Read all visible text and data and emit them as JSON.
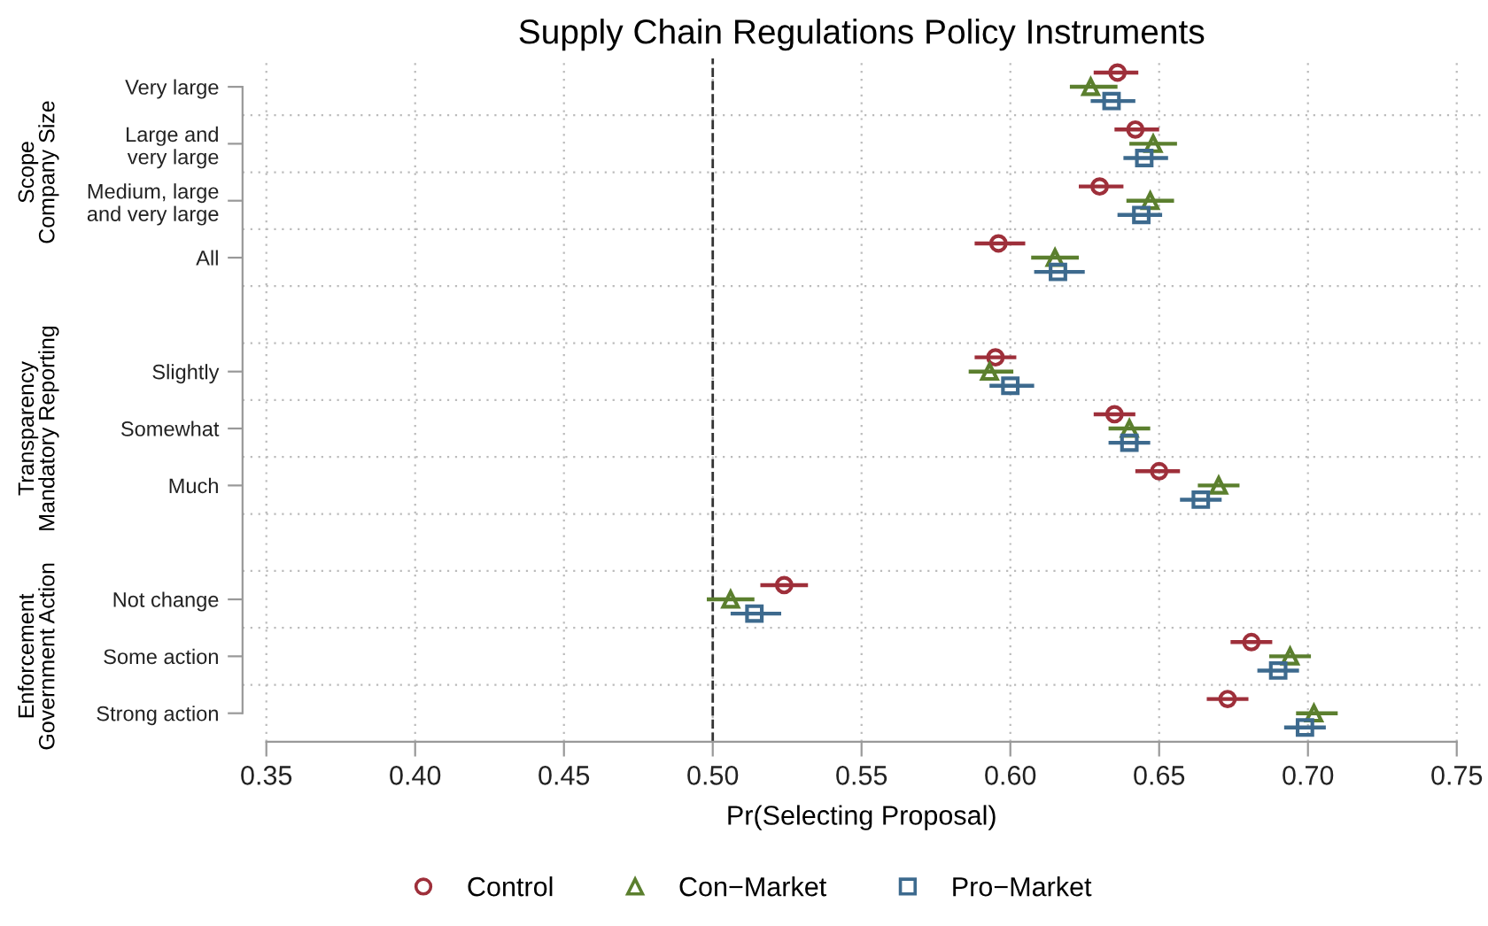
{
  "chart_data": {
    "type": "scatter",
    "orientation": "horizontal",
    "title": "Supply Chain Regulations Policy Instruments",
    "xlabel": "Pr(Selecting Proposal)",
    "categories": [
      "Very large",
      "Large and\nvery large",
      "Medium, large\nand very large",
      "All",
      null,
      "Slightly",
      "Somewhat",
      "Much",
      null,
      "Not change",
      "Some action",
      "Strong action"
    ],
    "annotations": [
      "Scope\nCompany Size",
      "Transparency\nMandatory Reporting",
      "Enforcement\nGovernment Action"
    ],
    "series": [
      {
        "name": "Control",
        "color": "#9e2f3a",
        "marker": "circle",
        "values": [
          0.636,
          0.642,
          0.63,
          0.596,
          null,
          0.595,
          0.635,
          0.65,
          null,
          0.524,
          0.681,
          0.673
        ],
        "errors": [
          [
            0.628,
            0.643
          ],
          [
            0.635,
            0.65
          ],
          [
            0.623,
            0.638
          ],
          [
            0.588,
            0.605
          ],
          null,
          [
            0.588,
            0.602
          ],
          [
            0.628,
            0.642
          ],
          [
            0.642,
            0.657
          ],
          null,
          [
            0.516,
            0.532
          ],
          [
            0.674,
            0.688
          ],
          [
            0.666,
            0.68
          ]
        ]
      },
      {
        "name": "Con−Market",
        "color": "#5b7f2e",
        "marker": "triangle",
        "values": [
          0.627,
          0.648,
          0.647,
          0.615,
          null,
          0.593,
          0.64,
          0.67,
          null,
          0.506,
          0.694,
          0.702
        ],
        "errors": [
          [
            0.62,
            0.636
          ],
          [
            0.64,
            0.656
          ],
          [
            0.639,
            0.655
          ],
          [
            0.607,
            0.623
          ],
          null,
          [
            0.586,
            0.601
          ],
          [
            0.633,
            0.647
          ],
          [
            0.663,
            0.677
          ],
          null,
          [
            0.498,
            0.514
          ],
          [
            0.687,
            0.701
          ],
          [
            0.696,
            0.71
          ]
        ]
      },
      {
        "name": "Pro−Market",
        "color": "#3d6a8e",
        "marker": "square",
        "values": [
          0.634,
          0.645,
          0.644,
          0.616,
          null,
          0.6,
          0.64,
          0.664,
          null,
          0.514,
          0.69,
          0.699
        ],
        "errors": [
          [
            0.627,
            0.642
          ],
          [
            0.638,
            0.653
          ],
          [
            0.636,
            0.651
          ],
          [
            0.608,
            0.625
          ],
          null,
          [
            0.593,
            0.608
          ],
          [
            0.633,
            0.647
          ],
          [
            0.657,
            0.671
          ],
          null,
          [
            0.506,
            0.523
          ],
          [
            0.683,
            0.697
          ],
          [
            0.692,
            0.706
          ]
        ]
      }
    ],
    "xlim": [
      0.342,
      0.758
    ],
    "xticks": [
      {
        "value": 0.35,
        "label": "0.35"
      },
      {
        "value": 0.4,
        "label": "0.40"
      },
      {
        "value": 0.45,
        "label": "0.45"
      },
      {
        "value": 0.5,
        "label": "0.50"
      },
      {
        "value": 0.55,
        "label": "0.55"
      },
      {
        "value": 0.6,
        "label": "0.60"
      },
      {
        "value": 0.65,
        "label": "0.65"
      },
      {
        "value": 0.7,
        "label": "0.70"
      },
      {
        "value": 0.75,
        "label": "0.75"
      }
    ],
    "ref_lines": [
      {
        "axis": "x",
        "value": 0.5,
        "color": "#333333",
        "line_style": "dashed"
      }
    ],
    "grid": true,
    "legend": "bottom"
  }
}
